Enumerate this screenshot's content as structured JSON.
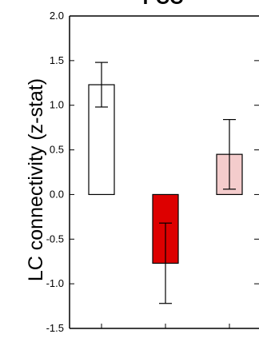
{
  "chart_data": {
    "type": "bar",
    "title": "PCC",
    "xlabel": "",
    "ylabel": "LC connectivity (z-stat)",
    "ylim": [
      -1.5,
      2.0
    ],
    "yticks": [
      "2.0",
      "1.5",
      "1.0",
      "0.5",
      "0.0",
      "-0.5",
      "-1.0",
      "-1.5"
    ],
    "grid": false,
    "categories": [
      "",
      "",
      ""
    ],
    "values": [
      1.23,
      -0.77,
      0.45
    ],
    "errors": [
      0.25,
      0.45,
      0.39
    ],
    "colors": [
      "#ffffff",
      "#dd0000",
      "#f4cccc"
    ]
  }
}
